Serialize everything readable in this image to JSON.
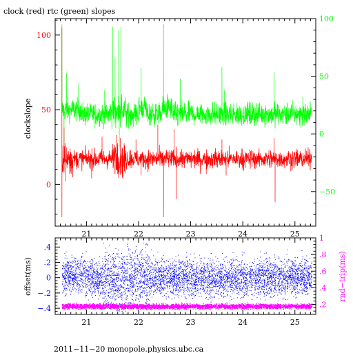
{
  "chart_data": [
    {
      "type": "line",
      "title": "clock (red) rtc (green) slopes",
      "ylabel": "clockslope",
      "xlim": [
        20.4,
        25.4
      ],
      "ylim": [
        -28,
        111
      ],
      "y2lim": [
        -80,
        100
      ],
      "x_ticks": [
        21,
        22,
        23,
        24,
        25
      ],
      "y_ticks": [
        0,
        50,
        100
      ],
      "y2_ticks": [
        -50,
        0,
        50,
        100
      ],
      "grid": false,
      "series": [
        {
          "name": "clock",
          "color": "#ff0000",
          "axis": "left",
          "baseline": 17,
          "noise": 3.2,
          "points": [
            {
              "x": 20.53,
              "y": 105
            },
            {
              "x": 20.53,
              "y": -22
            },
            {
              "x": 20.57,
              "y": 38
            },
            {
              "x": 20.6,
              "y": 2
            },
            {
              "x": 21.1,
              "y": 4
            },
            {
              "x": 21.3,
              "y": 32
            },
            {
              "x": 21.57,
              "y": 33
            },
            {
              "x": 21.6,
              "y": 7
            },
            {
              "x": 21.65,
              "y": 31
            },
            {
              "x": 21.7,
              "y": 4
            },
            {
              "x": 21.95,
              "y": 30
            },
            {
              "x": 22.05,
              "y": 6
            },
            {
              "x": 22.37,
              "y": 40
            },
            {
              "x": 22.48,
              "y": -22
            },
            {
              "x": 22.68,
              "y": 37
            },
            {
              "x": 22.72,
              "y": -10
            },
            {
              "x": 23.3,
              "y": 7
            },
            {
              "x": 23.6,
              "y": 30
            },
            {
              "x": 23.68,
              "y": 6
            },
            {
              "x": 24.6,
              "y": 31
            },
            {
              "x": 24.62,
              "y": -12
            },
            {
              "x": 25.2,
              "y": 24
            }
          ]
        },
        {
          "name": "rtc",
          "color": "#00ff00",
          "axis": "right",
          "baseline": 17,
          "noise": 5,
          "points": [
            {
              "x": 20.53,
              "y": 95
            },
            {
              "x": 20.57,
              "y": -30
            },
            {
              "x": 20.62,
              "y": 53
            },
            {
              "x": 20.85,
              "y": 44
            },
            {
              "x": 21.35,
              "y": 38
            },
            {
              "x": 21.5,
              "y": 93
            },
            {
              "x": 21.55,
              "y": 66
            },
            {
              "x": 21.62,
              "y": 90
            },
            {
              "x": 21.63,
              "y": -12
            },
            {
              "x": 21.66,
              "y": 93
            },
            {
              "x": 22.05,
              "y": 57
            },
            {
              "x": 22.48,
              "y": 95
            },
            {
              "x": 22.55,
              "y": 35
            },
            {
              "x": 22.8,
              "y": 48
            },
            {
              "x": 23.6,
              "y": 58
            },
            {
              "x": 23.65,
              "y": 38
            },
            {
              "x": 24.6,
              "y": 54
            },
            {
              "x": 25.15,
              "y": 32
            }
          ]
        }
      ]
    },
    {
      "type": "scatter",
      "ylabel": "offset(ms)",
      "y2label": "rnd−trip(ms)",
      "xlim": [
        20.4,
        25.4
      ],
      "ylim": [
        -0.48,
        0.52
      ],
      "y2lim": [
        0.08,
        1.0
      ],
      "x_ticks": [
        21,
        22,
        23,
        24,
        25
      ],
      "y_ticks": [
        -0.4,
        -0.2,
        0,
        0.2,
        0.4
      ],
      "y2_ticks": [
        0.2,
        0.4,
        0.6,
        0.8,
        1
      ],
      "grid": false,
      "series": [
        {
          "name": "offset",
          "color": "#0000ff",
          "axis": "left",
          "trend": [
            {
              "x": 20.5,
              "y": 0.05
            },
            {
              "x": 21.0,
              "y": 0.02
            },
            {
              "x": 21.5,
              "y": -0.05
            },
            {
              "x": 22.0,
              "y": 0.02
            },
            {
              "x": 23.0,
              "y": 0.0
            },
            {
              "x": 24.0,
              "y": 0.0
            },
            {
              "x": 25.3,
              "y": 0.02
            }
          ],
          "spread": 0.12
        },
        {
          "name": "rnd-trip",
          "color": "#ff00ff",
          "axis": "right",
          "baseline": 0.18,
          "spread": 0.015
        }
      ]
    }
  ],
  "footer": "2011−11−20 monopole.physics.ubc.ca",
  "colors": {
    "clock": "#ff0000",
    "rtc": "#00ff00",
    "offset": "#0000ff",
    "rndtrip": "#ff00ff",
    "axis": "#000000"
  }
}
